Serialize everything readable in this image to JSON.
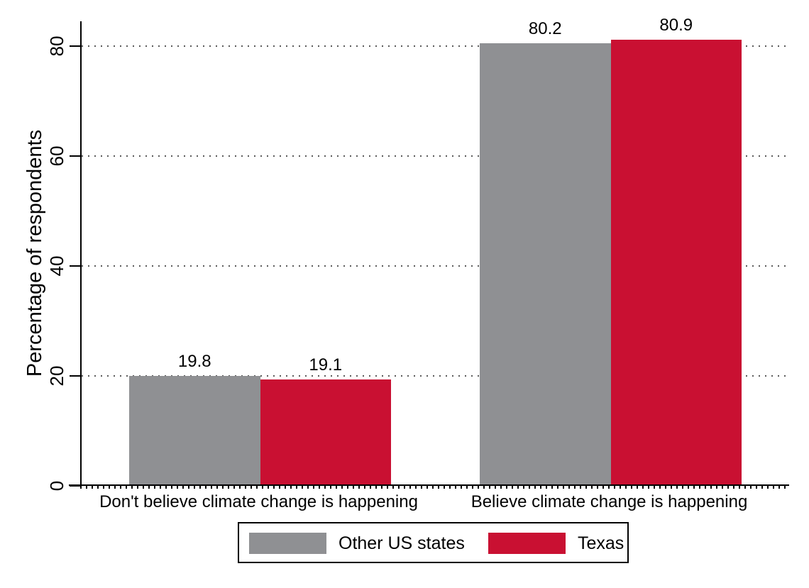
{
  "chart_data": {
    "type": "bar",
    "title": "",
    "xlabel": "",
    "ylabel": "Percentage of respondents",
    "categories": [
      "Don't believe climate change is happening",
      "Believe climate change is happening"
    ],
    "series": [
      {
        "name": "Other US states",
        "color": "#8f9093",
        "values": [
          19.8,
          80.2
        ],
        "value_labels": [
          "19.8",
          "80.2"
        ]
      },
      {
        "name": "Texas",
        "color": "#c91032",
        "values": [
          19.1,
          80.9
        ],
        "value_labels": [
          "19.1",
          "80.9"
        ]
      }
    ],
    "yticks": [
      0,
      20,
      40,
      60,
      80
    ],
    "ylim": [
      0,
      84.5
    ],
    "grid": "horizontal-dotted",
    "legend_position": "bottom-outside-boxed",
    "colors": {
      "grid": "#5a5a5a",
      "axis": "#000000",
      "text": "#000000",
      "background": "#ffffff"
    }
  }
}
